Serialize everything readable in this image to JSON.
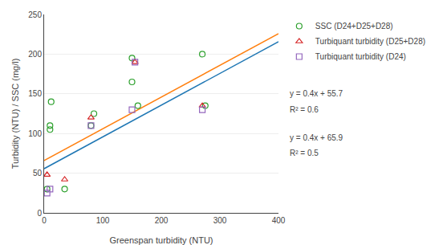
{
  "chart_data": {
    "type": "scatter",
    "xlabel": "Greenspan turbidity (NTU)",
    "ylabel": "Turbidity (NTU) / SSC (mg/l)",
    "xlim": [
      0,
      400
    ],
    "ylim": [
      0,
      250
    ],
    "xticks": [
      0,
      100,
      200,
      300,
      400
    ],
    "yticks": [
      0,
      50,
      100,
      150,
      200,
      250
    ],
    "grid": "y",
    "series": [
      {
        "type": "line",
        "x": [
          0,
          400
        ],
        "values": [
          55.7,
          215.7
        ]
      },
      {
        "type": "line",
        "x": [
          0,
          400
        ],
        "values": [
          65.9,
          225.9
        ]
      },
      {
        "type": "scatter",
        "name": "SSC (D24+D25+D28)",
        "marker": "circle",
        "x": [
          5,
          10,
          10,
          12,
          35,
          80,
          85,
          150,
          150,
          160,
          270,
          275
        ],
        "values": [
          30,
          105,
          110,
          140,
          30,
          110,
          125,
          165,
          195,
          135,
          200,
          135
        ]
      },
      {
        "type": "scatter",
        "name": "Turbiquant turbidity (D25+D28)",
        "marker": "triangle-up",
        "x": [
          5,
          35,
          80,
          155,
          270
        ],
        "values": [
          48,
          42,
          120,
          190,
          135
        ]
      },
      {
        "type": "scatter",
        "name": "Turbiquant turbidity (D24)",
        "marker": "square",
        "x": [
          5,
          10,
          80,
          150,
          155,
          270
        ],
        "values": [
          25,
          30,
          110,
          130,
          190,
          130
        ]
      }
    ],
    "annotations": [
      "y = 0.4x + 55.7",
      "R² = 0.6",
      "y = 0.4x + 65.9",
      "R² = 0.5"
    ]
  }
}
